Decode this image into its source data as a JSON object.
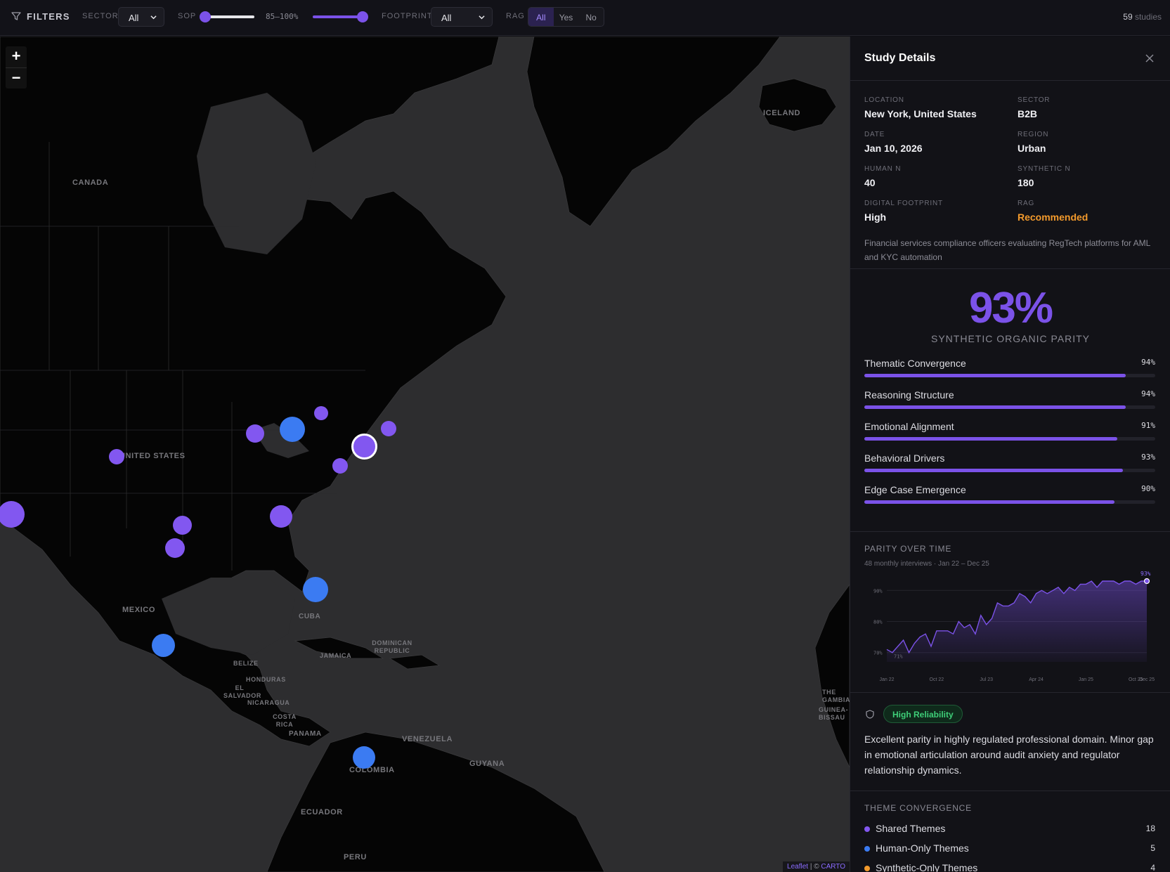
{
  "filters": {
    "title": "FILTERS",
    "sector_label": "SECTOR",
    "sector_value": "All",
    "sop_label": "SOP",
    "sop_range_text": "85–100%",
    "sop_range": [
      85,
      100
    ],
    "footprint_label": "FOOTPRINT",
    "footprint_value": "All",
    "rag_label": "RAG",
    "rag_options": [
      "All",
      "Yes",
      "No"
    ],
    "rag_selected": "All",
    "study_count": "59",
    "study_count_suffix": "studies"
  },
  "map": {
    "labels": [
      "ICELAND",
      "CANADA",
      "UNITED STATES",
      "MEXICO",
      "CUBA",
      "DOMINICAN REPUBLIC",
      "JAMAICA",
      "BELIZE",
      "HONDURAS",
      "EL SALVADOR",
      "NICARAGUA",
      "COSTA RICA",
      "PANAMA",
      "VENEZUELA",
      "GUYANA",
      "COLOMBIA",
      "ECUADOR",
      "PERU",
      "THE GAMBIA",
      "GUINEA-BISSAU"
    ],
    "zoom_in": "+",
    "zoom_out": "−",
    "attribution_leaflet": "Leaflet",
    "attribution_sep": "| ©",
    "attribution_carto": "CARTO",
    "colors": {
      "purple": "#8257f0",
      "blue": "#3b7bf2"
    }
  },
  "details": {
    "title": "Study Details",
    "fields": {
      "location_key": "LOCATION",
      "location": "New York, United States",
      "sector_key": "SECTOR",
      "sector": "B2B",
      "date_key": "DATE",
      "date": "Jan 10, 2026",
      "region_key": "REGION",
      "region": "Urban",
      "human_n_key": "HUMAN N",
      "human_n": "40",
      "synthetic_n_key": "SYNTHETIC N",
      "synthetic_n": "180",
      "footprint_key": "DIGITAL FOOTPRINT",
      "footprint": "High",
      "rag_key": "RAG",
      "rag": "Recommended"
    },
    "description": "Financial services compliance officers evaluating RegTech platforms for AML and KYC automation",
    "parity_value": "93%",
    "parity_label": "SYNTHETIC ORGANIC PARITY",
    "metrics": [
      {
        "label": "Thematic Convergence",
        "value": "94%",
        "pct": 94
      },
      {
        "label": "Reasoning Structure",
        "value": "94%",
        "pct": 94
      },
      {
        "label": "Emotional Alignment",
        "value": "91%",
        "pct": 91
      },
      {
        "label": "Behavioral Drivers",
        "value": "93%",
        "pct": 93
      },
      {
        "label": "Edge Case Emergence",
        "value": "90%",
        "pct": 90
      }
    ],
    "trend_title": "PARITY OVER TIME",
    "trend_subtitle": "48 monthly interviews · Jan 22 – Dec 25",
    "reliability_badge": "High Reliability",
    "reliability_text": "Excellent parity in highly regulated professional domain. Minor gap in emotional articulation around audit anxiety and regulator relationship dynamics.",
    "themes_title": "THEME CONVERGENCE",
    "themes": [
      {
        "label": "Shared Themes",
        "count": "18",
        "color": "#8257f0"
      },
      {
        "label": "Human-Only Themes",
        "count": "5",
        "color": "#3b7bf2"
      },
      {
        "label": "Synthetic-Only Themes",
        "count": "4",
        "color": "#f39a2c"
      }
    ]
  },
  "chart_data": {
    "type": "area",
    "title": "PARITY OVER TIME",
    "x_tick_labels": [
      "Jan 22",
      "Oct 22",
      "Jul 23",
      "Apr 24",
      "Jan 25",
      "Oct 25",
      "Dec 25"
    ],
    "y_tick_labels": [
      "70%",
      "80%",
      "90%"
    ],
    "ylim": [
      67,
      93
    ],
    "start_label": "71%",
    "end_label": "93%",
    "series": [
      {
        "values": [
          71,
          70,
          72,
          74,
          70,
          73,
          75,
          76,
          72,
          77,
          77,
          77,
          76,
          80,
          78,
          79,
          76,
          82,
          79,
          81,
          86,
          85,
          85,
          86,
          89,
          88,
          86,
          89,
          90,
          89,
          90,
          91,
          89,
          91,
          90,
          92,
          92,
          93,
          91,
          93,
          93,
          93,
          92,
          93,
          93,
          92,
          93,
          93
        ]
      }
    ],
    "grid": true,
    "legend": "none"
  }
}
